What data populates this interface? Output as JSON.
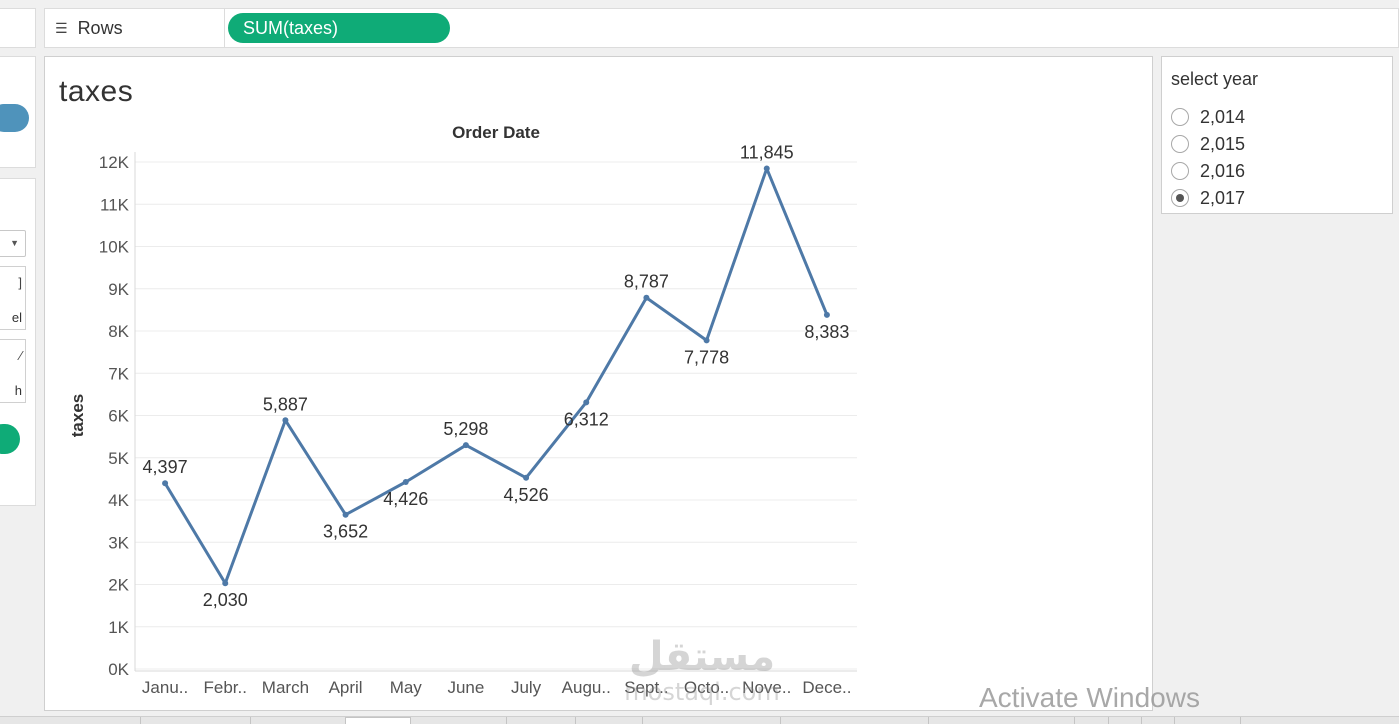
{
  "rows_shelf": {
    "label": "Rows",
    "pill": "SUM(taxes)"
  },
  "left_panel": {
    "card_a_text": "el",
    "card_b_text": "h"
  },
  "sheet": {
    "title": "taxes"
  },
  "filter": {
    "title": "select year",
    "options": [
      "2,014",
      "2,015",
      "2,016",
      "2,017"
    ],
    "selected": "2,017"
  },
  "watermarks": {
    "activate": "Activate Windows",
    "site_latin": "mostaql.com",
    "site_arabic": "مستقل"
  },
  "colors": {
    "line": "#4e79a7",
    "pill_green": "#0fab77",
    "pill_blue": "#4f93bb"
  },
  "chart_data": {
    "type": "line",
    "title": "Order Date",
    "xlabel": "",
    "ylabel": "taxes",
    "categories": [
      "Janu..",
      "Febr..",
      "March",
      "April",
      "May",
      "June",
      "July",
      "Augu..",
      "Sept..",
      "Octo..",
      "Nove..",
      "Dece.."
    ],
    "series": [
      {
        "values": [
          4397,
          2030,
          5887,
          3652,
          4426,
          5298,
          4526,
          6312,
          8787,
          7778,
          11845,
          8383
        ]
      }
    ],
    "data_labels": [
      "4,397",
      "2,030",
      "5,887",
      "3,652",
      "4,426",
      "5,298",
      "4,526",
      "6,312",
      "8,787",
      "7,778",
      "11,845",
      "8,383"
    ],
    "label_position": [
      "above",
      "below",
      "above",
      "below",
      "below",
      "above",
      "below",
      "below",
      "above",
      "below",
      "above",
      "below"
    ],
    "yticks": [
      0,
      1000,
      2000,
      3000,
      4000,
      5000,
      6000,
      7000,
      8000,
      9000,
      10000,
      11000,
      12000
    ],
    "ytick_labels": [
      "0K",
      "1K",
      "2K",
      "3K",
      "4K",
      "5K",
      "6K",
      "7K",
      "8K",
      "9K",
      "10K",
      "11K",
      "12K"
    ],
    "ylim": [
      0,
      12000
    ],
    "grid": true,
    "legend": "none"
  }
}
